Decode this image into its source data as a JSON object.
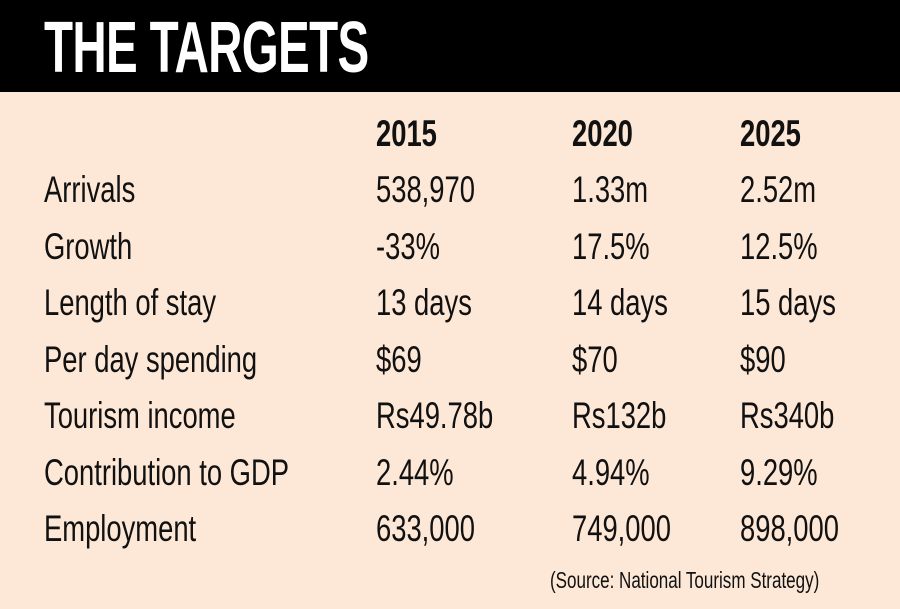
{
  "title": "THE TARGETS",
  "columns": [
    "2015",
    "2020",
    "2025"
  ],
  "rows": [
    {
      "label": "Arrivals",
      "values": [
        "538,970",
        "1.33m",
        "2.52m"
      ]
    },
    {
      "label": "Growth",
      "values": [
        "-33%",
        "17.5%",
        "12.5%"
      ]
    },
    {
      "label": "Length of stay",
      "values": [
        "13 days",
        "14 days",
        "15 days"
      ]
    },
    {
      "label": "Per day spending",
      "values": [
        "$69",
        "$70",
        "$90"
      ]
    },
    {
      "label": "Tourism income",
      "values": [
        "Rs49.78b",
        "Rs132b",
        "Rs340b"
      ]
    },
    {
      "label": "Contribution to GDP",
      "values": [
        "2.44%",
        "4.94%",
        "9.29%"
      ]
    },
    {
      "label": "Employment",
      "values": [
        "633,000",
        "749,000",
        "898,000"
      ]
    }
  ],
  "source": "(Source: National Tourism Strategy)",
  "colors": {
    "header_bg": "#000000",
    "body_bg": "#fde7d6",
    "text": "#111111"
  }
}
